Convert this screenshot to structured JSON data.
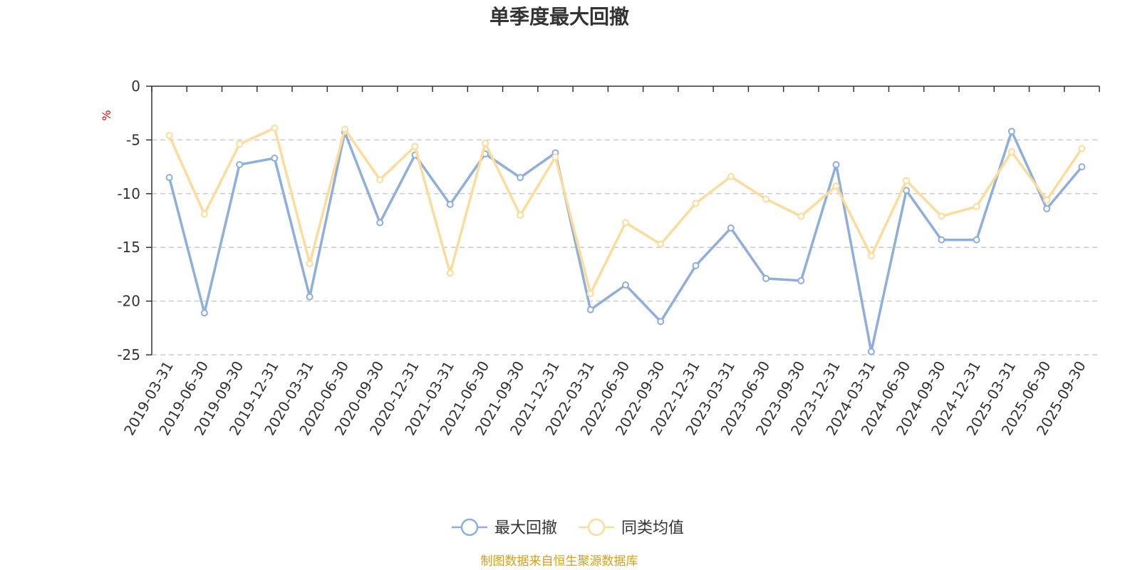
{
  "chart_data": {
    "type": "line",
    "title": "单季度最大回撤",
    "ylabel": "%",
    "ylim": [
      -25,
      0
    ],
    "yticks": [
      0,
      -5,
      -10,
      -15,
      -20,
      -25
    ],
    "ytick_labels": [
      "0",
      "-5",
      "-10",
      "-15",
      "-20",
      "-25"
    ],
    "grid": true,
    "legend_position": "bottom-center",
    "categories": [
      "2019-03-31",
      "2019-06-30",
      "2019-09-30",
      "2019-12-31",
      "2020-03-31",
      "2020-06-30",
      "2020-09-30",
      "2020-12-31",
      "2021-03-31",
      "2021-06-30",
      "2021-09-30",
      "2021-12-31",
      "2022-03-31",
      "2022-06-30",
      "2022-09-30",
      "2022-12-31",
      "2023-03-31",
      "2023-06-30",
      "2023-09-30",
      "2023-12-31",
      "2024-03-31",
      "2024-06-30",
      "2024-09-30",
      "2024-12-31",
      "2025-03-31",
      "2025-06-30",
      "2025-09-30"
    ],
    "series": [
      {
        "name": "最大回撤",
        "color": "#8eaedb",
        "values": [
          -8.5,
          -21.1,
          -7.3,
          -6.7,
          -19.6,
          -4.3,
          -12.7,
          -6.4,
          -11.0,
          -6.3,
          -8.5,
          -6.2,
          -20.8,
          -18.5,
          -21.9,
          -16.7,
          -13.2,
          -17.9,
          -18.1,
          -7.3,
          -24.7,
          -9.7,
          -14.3,
          -14.3,
          -4.2,
          -11.4,
          -7.5
        ]
      },
      {
        "name": "同类均值",
        "color": "#fcdc9b",
        "values": [
          -4.6,
          -11.9,
          -5.4,
          -3.9,
          -16.5,
          -4.0,
          -8.7,
          -5.6,
          -17.4,
          -5.3,
          -12.0,
          -6.6,
          -19.3,
          -12.7,
          -14.7,
          -10.9,
          -8.4,
          -10.5,
          -12.1,
          -9.3,
          -15.8,
          -8.8,
          -12.1,
          -11.2,
          -6.1,
          -10.6,
          -5.8
        ]
      }
    ],
    "source_note": "制图数据来自恒生聚源数据库",
    "source_color": "#d4a017",
    "unit_color": "#ff0000",
    "axis_color": "#333333",
    "grid_color": "#cccccc"
  }
}
